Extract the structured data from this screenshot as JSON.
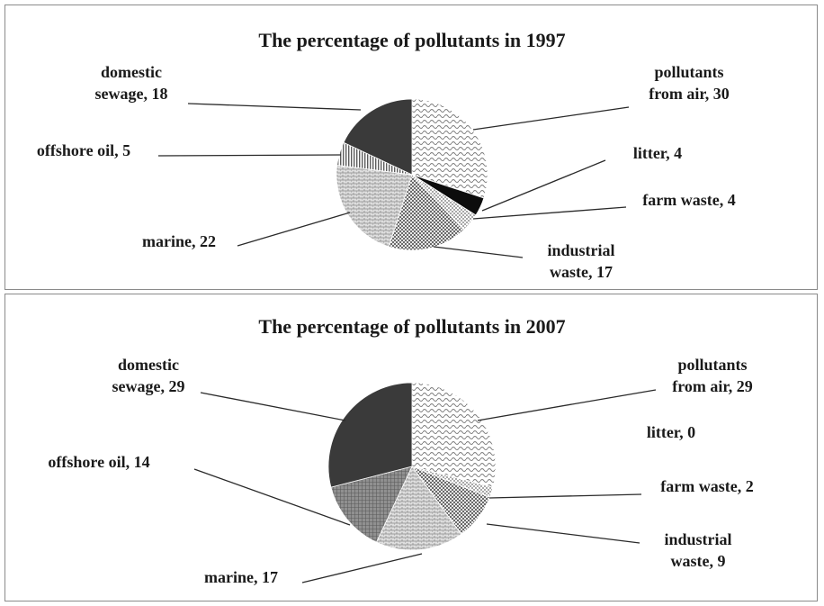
{
  "chart_data": [
    {
      "type": "pie",
      "title": "The percentage of pollutants in 1997",
      "slices": [
        {
          "name": "pollutants from air",
          "value": 30,
          "label_lines": [
            "pollutants",
            "from air, 30"
          ],
          "pattern": "pat-wave"
        },
        {
          "name": "litter",
          "value": 4,
          "label_lines": [
            "litter, 4"
          ],
          "pattern": "solid-black"
        },
        {
          "name": "farm waste",
          "value": 4,
          "label_lines": [
            "farm waste, 4"
          ],
          "pattern": "pat-dots"
        },
        {
          "name": "industrial waste",
          "value": 17,
          "label_lines": [
            "industrial",
            "waste, 17"
          ],
          "pattern": "pat-check"
        },
        {
          "name": "marine",
          "value": 22,
          "label_lines": [
            "marine, 22"
          ],
          "pattern": "pat-brick"
        },
        {
          "name": "offshore oil",
          "value": 5,
          "label_lines": [
            "offshore oil, 5"
          ],
          "pattern": "pat-vline"
        },
        {
          "name": "domestic sewage",
          "value": 18,
          "label_lines": [
            "domestic",
            "sewage, 18"
          ],
          "pattern": "solid-dark"
        }
      ]
    },
    {
      "type": "pie",
      "title": "The percentage of pollutants in 2007",
      "slices": [
        {
          "name": "pollutants from air",
          "value": 29,
          "label_lines": [
            "pollutants",
            "from air, 29"
          ],
          "pattern": "pat-wave"
        },
        {
          "name": "litter",
          "value": 0,
          "label_lines": [
            "litter, 0"
          ],
          "pattern": "solid-black"
        },
        {
          "name": "farm waste",
          "value": 2,
          "label_lines": [
            "farm waste, 2"
          ],
          "pattern": "pat-dots"
        },
        {
          "name": "industrial waste",
          "value": 9,
          "label_lines": [
            "industrial",
            "waste, 9"
          ],
          "pattern": "pat-check"
        },
        {
          "name": "marine",
          "value": 17,
          "label_lines": [
            "marine, 17"
          ],
          "pattern": "pat-brick"
        },
        {
          "name": "offshore oil",
          "value": 14,
          "label_lines": [
            "offshore oil, 14"
          ],
          "pattern": "pat-grid"
        },
        {
          "name": "domestic sewage",
          "value": 29,
          "label_lines": [
            "domestic",
            "sewage, 29"
          ],
          "pattern": "solid-dark"
        }
      ]
    }
  ]
}
